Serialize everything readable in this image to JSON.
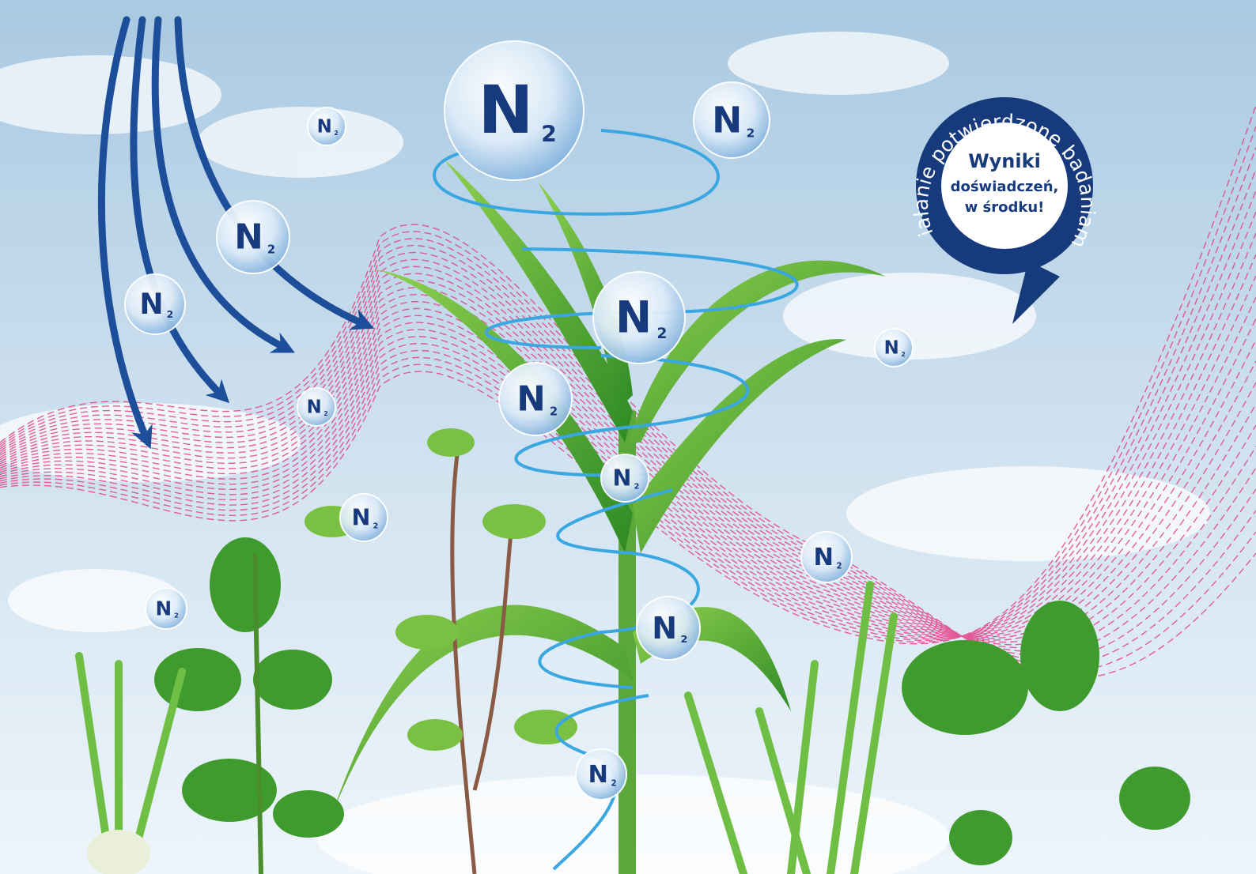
{
  "badge": {
    "arc_text": "Działanie potwierdzone badaniami!",
    "lines": [
      "Wyniki",
      "doświadczeń,",
      "w środku!"
    ]
  },
  "molecules": [
    {
      "symbol": "N",
      "index": "2"
    },
    {
      "symbol": "N",
      "index": "2"
    },
    {
      "symbol": "N",
      "index": "2"
    },
    {
      "symbol": "N",
      "index": "2"
    },
    {
      "symbol": "N",
      "index": "2"
    },
    {
      "symbol": "N",
      "index": "2"
    },
    {
      "symbol": "N",
      "index": "2"
    },
    {
      "symbol": "N",
      "index": "2"
    },
    {
      "symbol": "N",
      "index": "2"
    },
    {
      "symbol": "N",
      "index": "2"
    },
    {
      "symbol": "N",
      "index": "2"
    },
    {
      "symbol": "N",
      "index": "2"
    },
    {
      "symbol": "N",
      "index": "2"
    },
    {
      "symbol": "N",
      "index": "2"
    },
    {
      "symbol": "N",
      "index": "2"
    }
  ]
}
